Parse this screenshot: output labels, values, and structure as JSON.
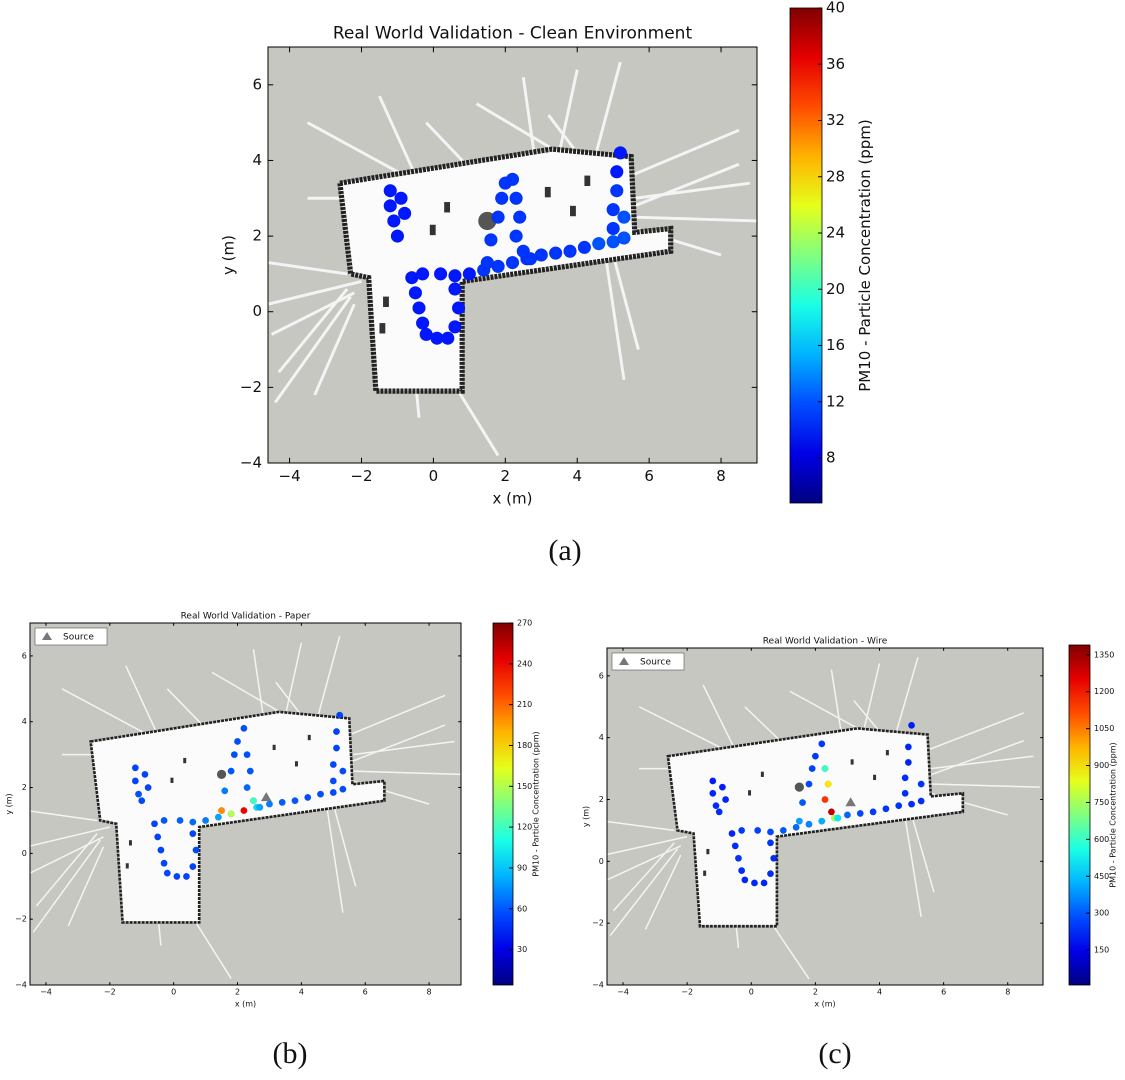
{
  "chart_data": [
    {
      "type": "scatter",
      "title": "Real World Validation - Clean Environment",
      "xlabel": "x (m)",
      "ylabel": "y (m)",
      "caption": "(a)",
      "xlim": [
        -4.6,
        9
      ],
      "ylim": [
        -4,
        7
      ],
      "xticks": [
        {
          "value": -4,
          "label": "−4"
        },
        {
          "value": -2,
          "label": "−2"
        },
        0,
        2,
        4,
        6,
        8
      ],
      "yticks": [
        {
          "value": -4,
          "label": "−4"
        },
        {
          "value": -2,
          "label": "−2"
        },
        0,
        2,
        4,
        6
      ],
      "x": [
        -1.2,
        -1.2,
        -1.1,
        -0.9,
        -0.8,
        -1.0,
        -0.6,
        -0.5,
        -0.4,
        -0.3,
        -0.2,
        0.1,
        0.4,
        0.6,
        0.7,
        0.6,
        -0.3,
        0.2,
        0.6,
        1.0,
        1.4,
        1.8,
        2.2,
        2.6,
        3.0,
        3.4,
        3.8,
        4.2,
        4.6,
        5.0,
        5.3,
        1.5,
        1.6,
        1.8,
        1.9,
        2.0,
        2.2,
        2.3,
        2.4,
        2.3,
        2.5,
        2.7,
        5.0,
        5.0,
        5.1,
        5.1,
        5.2,
        5.3
      ],
      "values": [
        3.2,
        2.8,
        2.4,
        3.0,
        2.6,
        2.0,
        0.9,
        0.5,
        0.1,
        -0.3,
        -0.6,
        -0.7,
        -0.7,
        -0.4,
        0.1,
        0.6,
        1.0,
        1.0,
        0.95,
        1.0,
        1.1,
        1.2,
        1.3,
        1.4,
        1.5,
        1.55,
        1.6,
        1.7,
        1.8,
        1.85,
        1.95,
        1.3,
        1.9,
        2.5,
        3.0,
        3.4,
        3.5,
        3.0,
        2.5,
        2.0,
        1.6,
        1.4,
        2.2,
        2.7,
        3.2,
        3.7,
        4.2,
        2.5
      ],
      "color_values": [
        10,
        10,
        10,
        10,
        10,
        10,
        10,
        10,
        10,
        10,
        10,
        10,
        10,
        10,
        10,
        10,
        10,
        10,
        10,
        10,
        11,
        11,
        11,
        11,
        11,
        11,
        11,
        11,
        12,
        12,
        12,
        11,
        11,
        11,
        11,
        11,
        11,
        11,
        11,
        11,
        11,
        11,
        11,
        11,
        11,
        10,
        10,
        12
      ],
      "colorbar": {
        "label": "PM10 - Particle Concentration (ppm)",
        "lim": [
          4.8,
          40
        ],
        "ticks": [
          8,
          12,
          16,
          20,
          24,
          28,
          32,
          36,
          40
        ]
      }
    },
    {
      "type": "scatter",
      "title": "Real World Validation - Paper",
      "xlabel": "x (m)",
      "ylabel": "y (m)",
      "caption": "(b)",
      "xlim": [
        -4.5,
        9
      ],
      "ylim": [
        -4,
        7
      ],
      "xticks": [
        {
          "value": -4,
          "label": "−4"
        },
        {
          "value": -2,
          "label": "−2"
        },
        0,
        2,
        4,
        6,
        8
      ],
      "yticks": [
        {
          "value": -4,
          "label": "−4"
        },
        {
          "value": -2,
          "label": "−2"
        },
        0,
        2,
        4,
        6
      ],
      "x": [
        -1.2,
        -1.2,
        -1.1,
        -0.9,
        -0.8,
        -1.0,
        -0.6,
        -0.5,
        -0.4,
        -0.3,
        -0.2,
        0.1,
        0.4,
        0.6,
        0.7,
        0.6,
        -0.3,
        0.2,
        0.6,
        1.0,
        1.4,
        1.8,
        2.2,
        2.6,
        3.0,
        3.4,
        3.8,
        4.2,
        4.6,
        5.0,
        5.3,
        1.5,
        1.6,
        1.8,
        1.9,
        2.0,
        2.2,
        2.3,
        2.4,
        2.3,
        2.5,
        2.7,
        5.0,
        5.0,
        5.1,
        5.1,
        5.2,
        5.3
      ],
      "values": [
        2.6,
        2.2,
        1.8,
        2.4,
        2.0,
        1.6,
        0.9,
        0.5,
        0.1,
        -0.3,
        -0.6,
        -0.7,
        -0.7,
        -0.4,
        0.1,
        0.6,
        1.0,
        1.0,
        0.95,
        1.0,
        1.1,
        1.2,
        1.3,
        1.4,
        1.5,
        1.55,
        1.6,
        1.7,
        1.8,
        1.85,
        1.95,
        1.3,
        1.9,
        2.5,
        3.0,
        3.4,
        3.8,
        3.0,
        2.5,
        2.0,
        1.6,
        1.4,
        2.2,
        2.7,
        3.2,
        3.7,
        4.2,
        2.5
      ],
      "color_values": [
        55,
        55,
        58,
        55,
        55,
        56,
        55,
        54,
        55,
        55,
        56,
        55,
        55,
        55,
        56,
        55,
        60,
        62,
        65,
        70,
        80,
        150,
        240,
        95,
        70,
        62,
        60,
        58,
        58,
        57,
        57,
        200,
        70,
        60,
        58,
        57,
        57,
        58,
        60,
        65,
        120,
        80,
        57,
        56,
        55,
        55,
        55,
        57
      ],
      "colorbar": {
        "label": "PM10 - Particle Concentration (ppm)",
        "lim": [
          4,
          270
        ],
        "ticks": [
          30,
          60,
          90,
          120,
          150,
          180,
          210,
          240,
          270
        ]
      },
      "source": {
        "name": "Source",
        "x": [
          2.9
        ],
        "values": [
          1.7
        ],
        "color": "#777777"
      },
      "legend": "upper left"
    },
    {
      "type": "scatter",
      "title": "Real World Validation - Wire",
      "xlabel": "x (m)",
      "ylabel": "y (m)",
      "caption": "(c)",
      "xlim": [
        -4.5,
        9.1
      ],
      "ylim": [
        -4,
        6.9
      ],
      "xticks": [
        {
          "value": -4,
          "label": "−4"
        },
        {
          "value": -2,
          "label": "−2"
        },
        0,
        2,
        4,
        6,
        8
      ],
      "yticks": [
        {
          "value": -4,
          "label": "−4"
        },
        {
          "value": -2,
          "label": "−2"
        },
        0,
        2,
        4,
        6
      ],
      "x": [
        -1.2,
        -1.2,
        -1.1,
        -0.9,
        -0.8,
        -1.0,
        -0.6,
        -0.5,
        -0.4,
        -0.3,
        -0.2,
        0.1,
        0.4,
        0.6,
        0.7,
        0.6,
        -0.3,
        0.2,
        0.6,
        1.0,
        1.4,
        1.8,
        2.2,
        2.6,
        3.0,
        3.4,
        3.8,
        4.2,
        4.6,
        5.0,
        5.3,
        1.5,
        1.6,
        1.8,
        1.9,
        2.0,
        2.2,
        2.3,
        2.4,
        2.3,
        2.5,
        2.7,
        4.8,
        4.8,
        4.9,
        4.9,
        5.0,
        5.3
      ],
      "values": [
        2.6,
        2.2,
        1.8,
        2.4,
        2.0,
        1.6,
        0.9,
        0.5,
        0.1,
        -0.3,
        -0.6,
        -0.7,
        -0.7,
        -0.4,
        0.1,
        0.6,
        1.0,
        1.0,
        0.95,
        1.0,
        1.1,
        1.2,
        1.3,
        1.4,
        1.5,
        1.55,
        1.6,
        1.7,
        1.8,
        1.85,
        1.95,
        1.3,
        1.9,
        2.5,
        3.0,
        3.4,
        3.8,
        3.0,
        2.5,
        2.0,
        1.6,
        1.4,
        2.2,
        2.7,
        3.2,
        3.7,
        4.4,
        2.5
      ],
      "color_values": [
        220,
        230,
        240,
        220,
        230,
        240,
        230,
        240,
        250,
        240,
        230,
        230,
        230,
        240,
        240,
        250,
        260,
        270,
        280,
        300,
        320,
        360,
        420,
        750,
        320,
        280,
        260,
        250,
        250,
        240,
        240,
        400,
        300,
        280,
        270,
        260,
        260,
        600,
        900,
        1150,
        1300,
        500,
        240,
        240,
        230,
        230,
        220,
        250
      ],
      "colorbar": {
        "label": "PM10 - Particle Concentration (ppm)",
        "lim": [
          8,
          1390
        ],
        "ticks": [
          150,
          300,
          450,
          600,
          750,
          900,
          1050,
          1200,
          1350
        ]
      },
      "source": {
        "name": "Source",
        "x": [
          3.1
        ],
        "values": [
          1.9
        ],
        "color": "#777777"
      },
      "legend": "upper left"
    }
  ]
}
